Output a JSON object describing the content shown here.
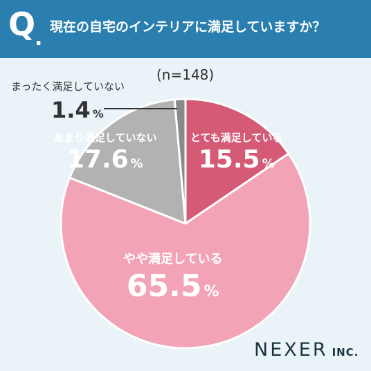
{
  "header": {
    "q_mark": "Q",
    "q_dot": ".",
    "question": "現在の自宅のインテリアに満足していますか？"
  },
  "sample_size": "(n=148)",
  "chart_data": {
    "type": "pie",
    "title": "現在の自宅のインテリアに満足していますか？",
    "slices": [
      {
        "label": "とても満足している",
        "value": 15.5,
        "unit": "%",
        "color": "#d55a76"
      },
      {
        "label": "やや満足している",
        "value": 65.5,
        "unit": "%",
        "color": "#f2a4b6"
      },
      {
        "label": "あまり満足していない",
        "value": 17.6,
        "unit": "%",
        "color": "#b2b2b2"
      },
      {
        "label": "まったく満足していない",
        "value": 1.4,
        "unit": "%",
        "color": "#8a8a8a"
      }
    ]
  },
  "brand": {
    "main": "NEXER",
    "sub": "INC."
  },
  "colors": {
    "header_bg": "#2a7fb0",
    "background": "#eaf3f8",
    "text_dark": "#333333"
  }
}
